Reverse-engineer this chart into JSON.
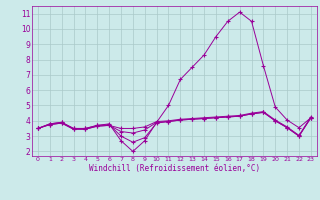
{
  "xlabel": "Windchill (Refroidissement éolien,°C)",
  "x": [
    0,
    1,
    2,
    3,
    4,
    5,
    6,
    7,
    8,
    9,
    10,
    11,
    12,
    13,
    14,
    15,
    16,
    17,
    18,
    19,
    20,
    21,
    22,
    23
  ],
  "line_main": [
    3.5,
    3.8,
    3.9,
    3.5,
    3.5,
    3.7,
    3.8,
    2.7,
    2.0,
    2.7,
    3.9,
    5.0,
    6.7,
    7.5,
    8.3,
    9.5,
    10.5,
    11.1,
    10.5,
    7.6,
    4.9,
    4.05,
    3.55,
    4.2
  ],
  "line2": [
    3.5,
    3.8,
    3.9,
    3.5,
    3.5,
    3.7,
    3.75,
    3.0,
    2.6,
    2.9,
    3.85,
    3.95,
    4.05,
    4.1,
    4.15,
    4.2,
    4.25,
    4.3,
    4.45,
    4.55,
    4.0,
    3.55,
    3.0,
    4.2
  ],
  "line3": [
    3.5,
    3.75,
    3.85,
    3.45,
    3.45,
    3.65,
    3.7,
    3.3,
    3.2,
    3.4,
    3.9,
    3.95,
    4.05,
    4.1,
    4.15,
    4.2,
    4.25,
    4.3,
    4.45,
    4.55,
    4.0,
    3.55,
    3.0,
    4.2
  ],
  "line4": [
    3.5,
    3.75,
    3.85,
    3.45,
    3.45,
    3.65,
    3.7,
    3.5,
    3.5,
    3.6,
    3.95,
    4.0,
    4.1,
    4.15,
    4.2,
    4.25,
    4.3,
    4.35,
    4.5,
    4.6,
    4.05,
    3.6,
    3.05,
    4.25
  ],
  "color": "#990099",
  "bg_color": "#cceaea",
  "grid_color": "#aacaca",
  "ylim": [
    1.7,
    11.5
  ],
  "xlim": [
    -0.5,
    23.5
  ]
}
